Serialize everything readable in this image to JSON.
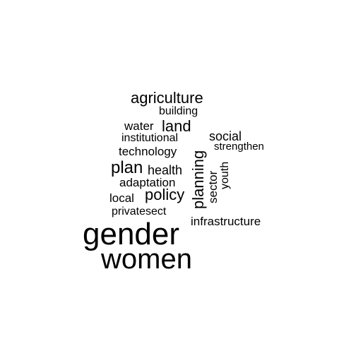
{
  "words": {
    "gender": "gender",
    "women": "women",
    "agriculture": "agriculture",
    "building": "building",
    "water": "water",
    "land": "land",
    "institutional": "institutional",
    "social": "social",
    "strengthen": "strengthen",
    "technology": "technology",
    "plan": "plan",
    "health": "health",
    "planning": "planning",
    "youth": "youth",
    "adaptation": "adaptation",
    "sector": "sector",
    "local": "local",
    "policy": "policy",
    "privatesect": "privatesect",
    "infrastructure": "infrastructure"
  },
  "colors": {
    "text": "#000000",
    "background": "#ffffff"
  }
}
